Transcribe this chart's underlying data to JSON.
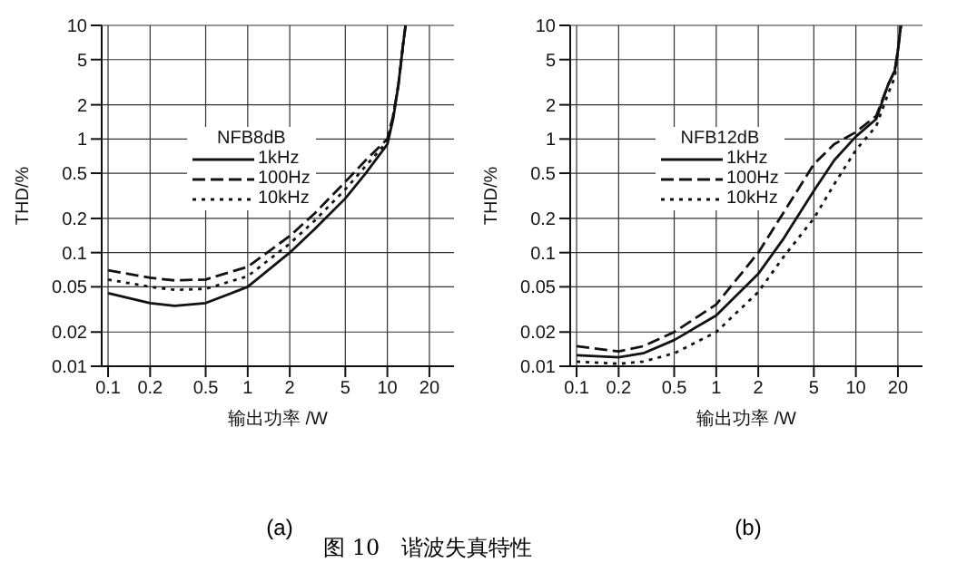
{
  "chart_data": [
    {
      "type": "line",
      "xlabel": "输出功率 /W",
      "ylabel": "THD/%",
      "legend_title": "NFB8dB",
      "annotations": [
        "(a)",
        "图 10　谐波失真特性"
      ],
      "x": [
        0.1,
        0.2,
        0.3,
        0.5,
        1,
        2,
        3,
        5,
        7,
        10,
        11,
        12,
        13,
        13.5
      ],
      "series": [
        {
          "name": "1kHz",
          "color": "#111111",
          "line_style": "solid",
          "values": [
            0.044,
            0.036,
            0.034,
            0.036,
            0.05,
            0.1,
            0.16,
            0.3,
            0.5,
            0.9,
            1.5,
            3,
            7,
            10
          ]
        },
        {
          "name": "100Hz",
          "color": "#111111",
          "line_style": "dashed",
          "values": [
            0.07,
            0.06,
            0.057,
            0.058,
            0.075,
            0.14,
            0.22,
            0.42,
            0.65,
            1.0,
            1.6,
            3,
            7,
            10
          ]
        },
        {
          "name": "10kHz",
          "color": "#111111",
          "line_style": "dotted",
          "values": [
            0.058,
            0.05,
            0.047,
            0.048,
            0.062,
            0.12,
            0.19,
            0.36,
            0.58,
            0.95,
            1.6,
            3,
            7,
            10
          ]
        }
      ],
      "log": "xy",
      "xlim": [
        0.09,
        30
      ],
      "ylim": [
        0.01,
        10
      ],
      "xticks": [
        0.1,
        0.2,
        0.5,
        1,
        2,
        5,
        10,
        20
      ],
      "yticks": [
        0.01,
        0.02,
        0.05,
        0.1,
        0.2,
        0.5,
        1,
        2,
        5,
        10
      ],
      "grid": true,
      "legend": "top",
      "marker": "none"
    },
    {
      "type": "line",
      "xlabel": "输出功率 /W",
      "ylabel": "THD/%",
      "legend_title": "NFB12dB",
      "annotations": [
        "(b)"
      ],
      "x": [
        0.1,
        0.2,
        0.3,
        0.5,
        1,
        2,
        3,
        5,
        7,
        10,
        14,
        17,
        19,
        20,
        21
      ],
      "series": [
        {
          "name": "1kHz",
          "color": "#111111",
          "line_style": "solid",
          "values": [
            0.0125,
            0.012,
            0.013,
            0.017,
            0.028,
            0.065,
            0.13,
            0.35,
            0.65,
            1.05,
            1.5,
            3,
            4,
            6,
            10
          ]
        },
        {
          "name": "100Hz",
          "color": "#111111",
          "line_style": "dashed",
          "values": [
            0.015,
            0.0135,
            0.015,
            0.02,
            0.035,
            0.1,
            0.22,
            0.6,
            0.9,
            1.15,
            1.6,
            3,
            4,
            6,
            10
          ]
        },
        {
          "name": "10kHz",
          "color": "#111111",
          "line_style": "dotted",
          "values": [
            0.011,
            0.0105,
            0.011,
            0.013,
            0.02,
            0.045,
            0.09,
            0.2,
            0.4,
            0.8,
            1.3,
            2.5,
            3.5,
            6,
            10
          ]
        }
      ],
      "log": "xy",
      "xlim": [
        0.09,
        30
      ],
      "ylim": [
        0.01,
        10
      ],
      "xticks": [
        0.1,
        0.2,
        0.5,
        1,
        2,
        5,
        10,
        20
      ],
      "yticks": [
        0.01,
        0.02,
        0.05,
        0.1,
        0.2,
        0.5,
        1,
        2,
        5,
        10
      ],
      "grid": true,
      "legend": "top",
      "marker": "none"
    }
  ]
}
